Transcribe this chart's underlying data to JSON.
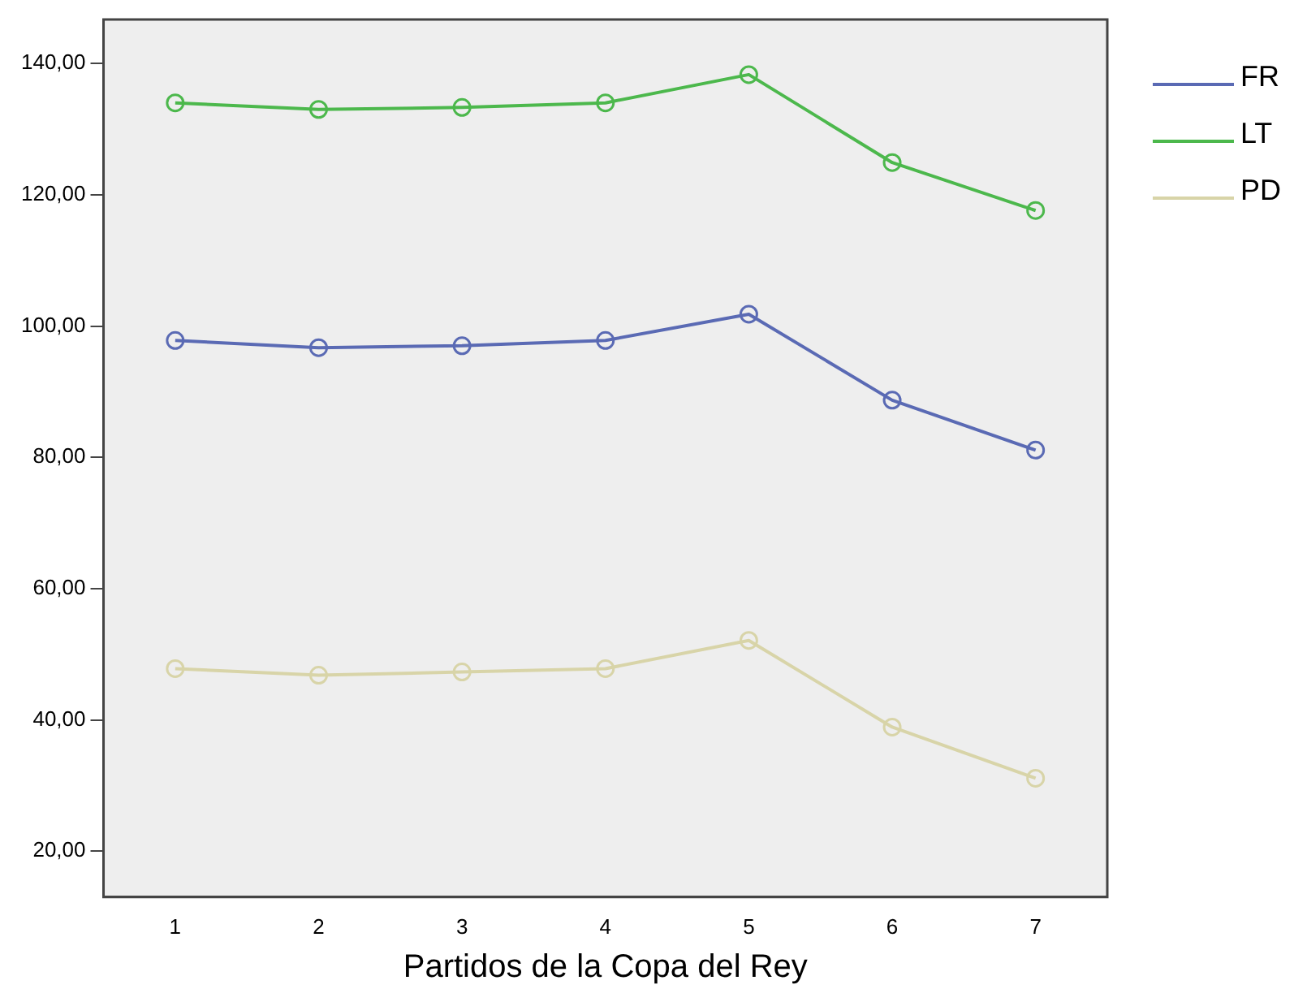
{
  "chart_data": {
    "type": "line",
    "xlabel": "Partidos de la Copa del Rey",
    "categories": [
      "1",
      "2",
      "3",
      "4",
      "5",
      "6",
      "7"
    ],
    "series": [
      {
        "name": "FR",
        "color": "#5a6ab4",
        "values": [
          97.8,
          96.7,
          97.0,
          97.8,
          101.8,
          88.7,
          81.1
        ]
      },
      {
        "name": "LT",
        "color": "#4cb84c",
        "values": [
          134.0,
          133.0,
          133.3,
          134.0,
          138.3,
          124.9,
          117.6
        ]
      },
      {
        "name": "PD",
        "color": "#d8d4a8",
        "values": [
          47.8,
          46.8,
          47.3,
          47.8,
          52.1,
          38.9,
          31.1
        ]
      }
    ],
    "ylim": [
      13,
      146.7
    ],
    "yticks": [
      {
        "value": 20,
        "label": "20,00"
      },
      {
        "value": 40,
        "label": "40,00"
      },
      {
        "value": 60,
        "label": "60,00"
      },
      {
        "value": 80,
        "label": "80,00"
      },
      {
        "value": 100,
        "label": "100,00"
      },
      {
        "value": 120,
        "label": "120,00"
      },
      {
        "value": 140,
        "label": "140,00"
      }
    ],
    "grid": false,
    "legend": "right",
    "marker": "circle",
    "line_style": "solid"
  }
}
